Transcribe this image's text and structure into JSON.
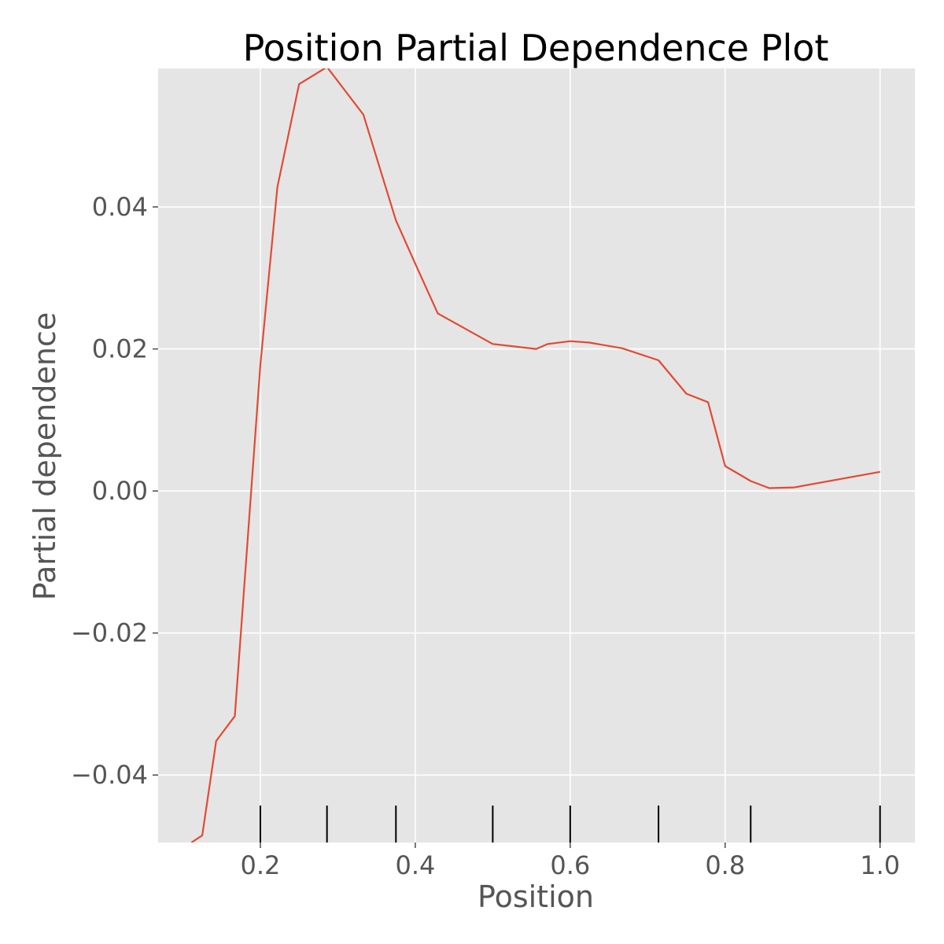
{
  "chart_data": {
    "type": "line",
    "title": "Position Partial Dependence Plot",
    "xlabel": "Position",
    "ylabel": "Partial dependence",
    "xlim": [
      0.068,
      1.045
    ],
    "ylim": [
      -0.0495,
      0.0595
    ],
    "x_ticks": [
      0.2,
      0.4,
      0.6,
      0.8,
      1.0
    ],
    "x_tick_labels": [
      "0.2",
      "0.4",
      "0.6",
      "0.8",
      "1.0"
    ],
    "y_ticks": [
      -0.04,
      -0.02,
      0.0,
      0.02,
      0.04
    ],
    "y_tick_labels": [
      "−0.04",
      "−0.02",
      "0.00",
      "0.02",
      "0.04"
    ],
    "grid": true,
    "colors": {
      "line": "#E24A33",
      "background": "#E5E5E5",
      "grid": "#FFFFFF",
      "rug": "#000000"
    },
    "series": [
      {
        "x": [
          0.111,
          0.125,
          0.143,
          0.167,
          0.2,
          0.222,
          0.25,
          0.286,
          0.333,
          0.375,
          0.4,
          0.429,
          0.5,
          0.556,
          0.571,
          0.6,
          0.625,
          0.667,
          0.714,
          0.75,
          0.778,
          0.8,
          0.833,
          0.857,
          0.889,
          1.0
        ],
        "y": [
          -0.0495,
          -0.0485,
          -0.0352,
          -0.0317,
          0.0178,
          0.0428,
          0.0573,
          0.0597,
          0.053,
          0.0381,
          0.032,
          0.025,
          0.0207,
          0.02,
          0.0207,
          0.0211,
          0.0209,
          0.0201,
          0.0184,
          0.0137,
          0.0125,
          0.0035,
          0.0014,
          0.0004,
          0.0005,
          0.0027
        ]
      }
    ],
    "rug_x": [
      0.2,
      0.286,
      0.375,
      0.5,
      0.6,
      0.714,
      0.833,
      1.0
    ]
  }
}
